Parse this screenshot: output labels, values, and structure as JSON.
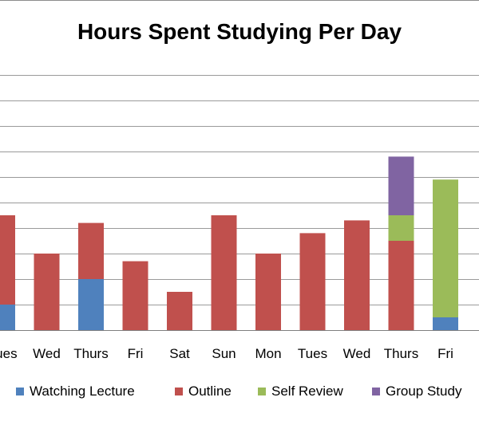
{
  "chart_data": {
    "type": "bar",
    "stacked": true,
    "title": "Hours Spent Studying Per Day",
    "categories": [
      "Tues",
      "Wed",
      "Thurs",
      "Fri",
      "Sat",
      "Sun",
      "Mon",
      "Tues",
      "Wed",
      "Thurs",
      "Fri"
    ],
    "series": [
      {
        "name": "Watching Lecture",
        "color": "#4F81BD",
        "values": [
          1.0,
          0,
          2.0,
          0,
          0,
          0,
          0,
          0,
          0,
          0,
          0.5
        ]
      },
      {
        "name": "Outline",
        "color": "#C0504D",
        "values": [
          3.5,
          3.0,
          2.2,
          2.7,
          1.5,
          4.5,
          3.0,
          3.8,
          4.3,
          3.5,
          0
        ]
      },
      {
        "name": "Self Review",
        "color": "#9BBB59",
        "values": [
          0,
          0,
          0,
          0,
          0,
          0,
          0,
          0,
          0,
          1.0,
          5.4
        ]
      },
      {
        "name": "Group Study",
        "color": "#8064A2",
        "values": [
          0,
          0,
          0,
          0,
          0,
          0,
          0,
          0,
          0,
          2.3,
          0
        ]
      }
    ],
    "ylim": [
      0,
      10
    ],
    "grid": true,
    "legend": "bottom"
  }
}
